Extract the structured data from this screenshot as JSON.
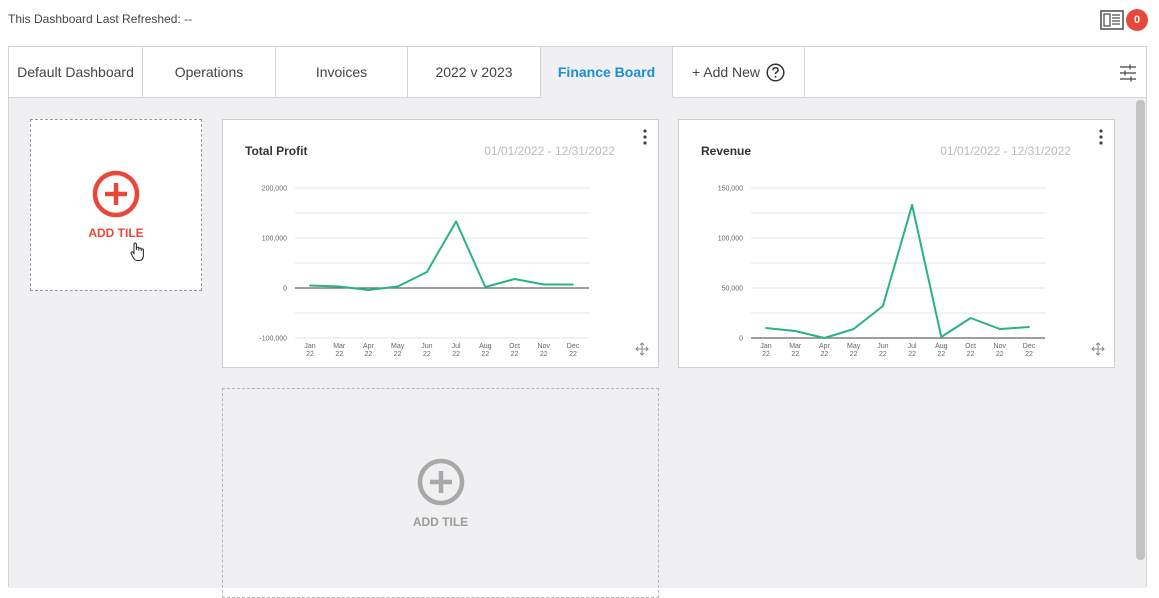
{
  "header": {
    "refreshed_label": "This Dashboard Last Refreshed: --",
    "notification_count": "0",
    "icons": [
      "layout-icon",
      "notification-badge"
    ]
  },
  "tabs": [
    {
      "label": "Default Dashboard",
      "active": false
    },
    {
      "label": "Operations",
      "active": false
    },
    {
      "label": "Invoices",
      "active": false
    },
    {
      "label": "2022 v 2023",
      "active": false
    },
    {
      "label": "Finance Board",
      "active": true
    },
    {
      "label": "+ Add New",
      "active": false
    }
  ],
  "colors": {
    "accent": "#1a8fd1",
    "add": "#e8483a",
    "line": "#27b386",
    "badge": "#e8483a"
  },
  "add_tile": {
    "label": "ADD TILE"
  },
  "add_tile_empty": {
    "label": "ADD TILE"
  },
  "chart_data": [
    {
      "type": "line",
      "title": "Total Profit",
      "date_range": "01/01/2022 - 12/31/2022",
      "categories": [
        "Jan 22",
        "Mar 22",
        "Apr 22",
        "May 22",
        "Jun 22",
        "Jul 22",
        "Aug 22",
        "Oct 22",
        "Nov 22",
        "Dec 22"
      ],
      "values": [
        5000,
        3000,
        -4000,
        3000,
        32000,
        133000,
        2000,
        18000,
        7000,
        7000
      ],
      "ylim": [
        -100000,
        200000
      ],
      "yticks": [
        -100000,
        0,
        100000,
        200000
      ],
      "ytick_labels": [
        "-100,000",
        "0",
        "100,000",
        "200,000"
      ],
      "xlabel": "",
      "ylabel": "",
      "grid": true,
      "legend": "none"
    },
    {
      "type": "line",
      "title": "Revenue",
      "date_range": "01/01/2022 - 12/31/2022",
      "categories": [
        "Jan 22",
        "Mar 22",
        "Apr 22",
        "May 22",
        "Jun 22",
        "Jul 22",
        "Aug 22",
        "Oct 22",
        "Nov 22",
        "Dec 22"
      ],
      "values": [
        10000,
        7000,
        0,
        9000,
        32000,
        133000,
        1000,
        20000,
        9000,
        11000
      ],
      "ylim": [
        0,
        150000
      ],
      "yticks": [
        0,
        50000,
        100000,
        150000
      ],
      "ytick_labels": [
        "0",
        "50,000",
        "100,000",
        "150,000"
      ],
      "xlabel": "",
      "ylabel": "",
      "grid": true,
      "legend": "none"
    }
  ]
}
